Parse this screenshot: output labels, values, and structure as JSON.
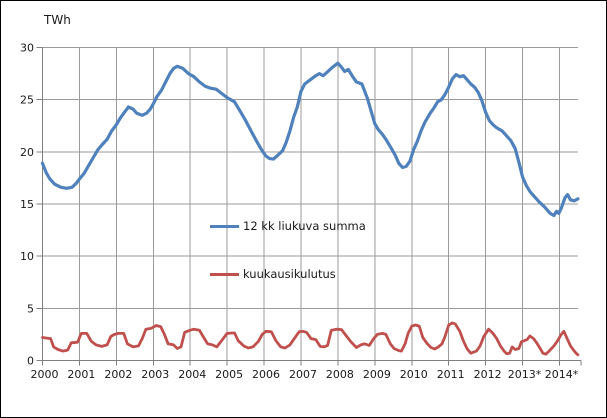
{
  "chart_data": {
    "type": "line",
    "title": "",
    "ylabel": "TWh",
    "grid": true,
    "legend_position": "inside-center-left",
    "grid_color": "#9b9b9b",
    "axis_color": "#7f7f7f",
    "x_axis": {
      "min": 2000,
      "max": 2014.583,
      "end_tick": true,
      "ticks": [
        {
          "year": 2000,
          "label": "2000"
        },
        {
          "year": 2001,
          "label": "2001"
        },
        {
          "year": 2002,
          "label": "2002"
        },
        {
          "year": 2003,
          "label": "2003"
        },
        {
          "year": 2004,
          "label": "2004"
        },
        {
          "year": 2005,
          "label": "2005"
        },
        {
          "year": 2006,
          "label": "2006"
        },
        {
          "year": 2007,
          "label": "2007"
        },
        {
          "year": 2008,
          "label": "2008"
        },
        {
          "year": 2009,
          "label": "2009"
        },
        {
          "year": 2010,
          "label": "2010"
        },
        {
          "year": 2011,
          "label": "2011"
        },
        {
          "year": 2012,
          "label": "2012"
        },
        {
          "year": 2013,
          "label": "2013*"
        },
        {
          "year": 2014,
          "label": "2014*"
        }
      ]
    },
    "y_axis": {
      "min": 0,
      "max": 30,
      "tick_interval": 5,
      "ticks": [
        {
          "value": 0,
          "label": "0"
        },
        {
          "value": 5,
          "label": "5"
        },
        {
          "value": 10,
          "label": "10"
        },
        {
          "value": 15,
          "label": "15"
        },
        {
          "value": 20,
          "label": "20"
        },
        {
          "value": 25,
          "label": "25"
        },
        {
          "value": 30,
          "label": "30"
        }
      ]
    },
    "series": [
      {
        "name": "12 kk liukuva summa",
        "color": "#4F81BD",
        "width": 3.2,
        "points": [
          [
            2000.0,
            18.9
          ],
          [
            2000.1,
            18.0
          ],
          [
            2000.2,
            17.4
          ],
          [
            2000.33,
            16.9
          ],
          [
            2000.5,
            16.6
          ],
          [
            2000.65,
            16.5
          ],
          [
            2000.8,
            16.6
          ],
          [
            2000.92,
            17.0
          ],
          [
            2001.0,
            17.4
          ],
          [
            2001.12,
            17.9
          ],
          [
            2001.25,
            18.7
          ],
          [
            2001.4,
            19.6
          ],
          [
            2001.5,
            20.2
          ],
          [
            2001.62,
            20.7
          ],
          [
            2001.75,
            21.2
          ],
          [
            2001.87,
            22.0
          ],
          [
            2002.0,
            22.6
          ],
          [
            2002.1,
            23.2
          ],
          [
            2002.22,
            23.8
          ],
          [
            2002.33,
            24.3
          ],
          [
            2002.45,
            24.1
          ],
          [
            2002.55,
            23.7
          ],
          [
            2002.7,
            23.5
          ],
          [
            2002.82,
            23.7
          ],
          [
            2002.92,
            24.1
          ],
          [
            2003.0,
            24.6
          ],
          [
            2003.1,
            25.3
          ],
          [
            2003.22,
            25.9
          ],
          [
            2003.35,
            26.8
          ],
          [
            2003.45,
            27.5
          ],
          [
            2003.55,
            28.0
          ],
          [
            2003.65,
            28.2
          ],
          [
            2003.8,
            28.0
          ],
          [
            2003.95,
            27.5
          ],
          [
            2004.1,
            27.2
          ],
          [
            2004.25,
            26.7
          ],
          [
            2004.4,
            26.3
          ],
          [
            2004.55,
            26.1
          ],
          [
            2004.7,
            26.0
          ],
          [
            2004.85,
            25.6
          ],
          [
            2005.0,
            25.2
          ],
          [
            2005.2,
            24.8
          ],
          [
            2005.35,
            23.9
          ],
          [
            2005.5,
            23.0
          ],
          [
            2005.65,
            22.0
          ],
          [
            2005.8,
            21.0
          ],
          [
            2005.95,
            20.1
          ],
          [
            2006.05,
            19.6
          ],
          [
            2006.15,
            19.35
          ],
          [
            2006.25,
            19.3
          ],
          [
            2006.35,
            19.6
          ],
          [
            2006.5,
            20.1
          ],
          [
            2006.6,
            20.9
          ],
          [
            2006.7,
            22.0
          ],
          [
            2006.8,
            23.3
          ],
          [
            2006.9,
            24.3
          ],
          [
            2007.0,
            25.8
          ],
          [
            2007.1,
            26.5
          ],
          [
            2007.25,
            26.9
          ],
          [
            2007.4,
            27.3
          ],
          [
            2007.5,
            27.5
          ],
          [
            2007.6,
            27.3
          ],
          [
            2007.7,
            27.6
          ],
          [
            2007.85,
            28.1
          ],
          [
            2008.0,
            28.5
          ],
          [
            2008.1,
            28.1
          ],
          [
            2008.18,
            27.7
          ],
          [
            2008.28,
            27.9
          ],
          [
            2008.4,
            27.2
          ],
          [
            2008.5,
            26.7
          ],
          [
            2008.65,
            26.5
          ],
          [
            2008.8,
            25.1
          ],
          [
            2008.9,
            23.9
          ],
          [
            2009.0,
            22.7
          ],
          [
            2009.1,
            22.1
          ],
          [
            2009.2,
            21.7
          ],
          [
            2009.3,
            21.2
          ],
          [
            2009.45,
            20.3
          ],
          [
            2009.55,
            19.7
          ],
          [
            2009.65,
            18.9
          ],
          [
            2009.75,
            18.5
          ],
          [
            2009.85,
            18.6
          ],
          [
            2009.95,
            19.1
          ],
          [
            2010.05,
            20.2
          ],
          [
            2010.15,
            21.0
          ],
          [
            2010.25,
            22.0
          ],
          [
            2010.35,
            22.8
          ],
          [
            2010.5,
            23.7
          ],
          [
            2010.6,
            24.2
          ],
          [
            2010.7,
            24.8
          ],
          [
            2010.8,
            25.0
          ],
          [
            2010.9,
            25.5
          ],
          [
            2011.0,
            26.2
          ],
          [
            2011.1,
            27.0
          ],
          [
            2011.2,
            27.4
          ],
          [
            2011.3,
            27.2
          ],
          [
            2011.4,
            27.3
          ],
          [
            2011.5,
            26.9
          ],
          [
            2011.6,
            26.5
          ],
          [
            2011.7,
            26.2
          ],
          [
            2011.8,
            25.7
          ],
          [
            2011.9,
            24.9
          ],
          [
            2012.0,
            23.8
          ],
          [
            2012.1,
            23.0
          ],
          [
            2012.2,
            22.6
          ],
          [
            2012.3,
            22.3
          ],
          [
            2012.45,
            22.0
          ],
          [
            2012.55,
            21.6
          ],
          [
            2012.68,
            21.1
          ],
          [
            2012.8,
            20.3
          ],
          [
            2012.9,
            19.0
          ],
          [
            2013.0,
            17.6
          ],
          [
            2013.1,
            16.8
          ],
          [
            2013.2,
            16.2
          ],
          [
            2013.3,
            15.8
          ],
          [
            2013.45,
            15.2
          ],
          [
            2013.6,
            14.7
          ],
          [
            2013.75,
            14.1
          ],
          [
            2013.85,
            13.9
          ],
          [
            2013.92,
            14.3
          ],
          [
            2013.98,
            14.1
          ],
          [
            2014.05,
            14.6
          ],
          [
            2014.15,
            15.6
          ],
          [
            2014.22,
            15.9
          ],
          [
            2014.3,
            15.4
          ],
          [
            2014.4,
            15.3
          ],
          [
            2014.5,
            15.5
          ]
        ]
      },
      {
        "name": "kuukausikulutus",
        "color": "#C0504D",
        "width": 2.8,
        "points": [
          [
            2000.0,
            2.2
          ],
          [
            2000.12,
            2.15
          ],
          [
            2000.22,
            2.1
          ],
          [
            2000.3,
            1.3
          ],
          [
            2000.42,
            1.05
          ],
          [
            2000.55,
            0.9
          ],
          [
            2000.68,
            1.0
          ],
          [
            2000.78,
            1.7
          ],
          [
            2000.95,
            1.75
          ],
          [
            2001.05,
            2.6
          ],
          [
            2001.2,
            2.6
          ],
          [
            2001.32,
            1.85
          ],
          [
            2001.45,
            1.5
          ],
          [
            2001.6,
            1.35
          ],
          [
            2001.75,
            1.5
          ],
          [
            2001.85,
            2.3
          ],
          [
            2001.95,
            2.5
          ],
          [
            2002.05,
            2.6
          ],
          [
            2002.2,
            2.6
          ],
          [
            2002.3,
            1.6
          ],
          [
            2002.45,
            1.3
          ],
          [
            2002.6,
            1.4
          ],
          [
            2002.7,
            2.1
          ],
          [
            2002.8,
            3.0
          ],
          [
            2002.95,
            3.1
          ],
          [
            2003.08,
            3.35
          ],
          [
            2003.2,
            3.25
          ],
          [
            2003.3,
            2.5
          ],
          [
            2003.4,
            1.6
          ],
          [
            2003.55,
            1.5
          ],
          [
            2003.65,
            1.15
          ],
          [
            2003.75,
            1.3
          ],
          [
            2003.85,
            2.7
          ],
          [
            2004.0,
            2.9
          ],
          [
            2004.1,
            3.0
          ],
          [
            2004.25,
            2.9
          ],
          [
            2004.35,
            2.3
          ],
          [
            2004.47,
            1.6
          ],
          [
            2004.6,
            1.5
          ],
          [
            2004.72,
            1.3
          ],
          [
            2004.85,
            1.9
          ],
          [
            2005.0,
            2.6
          ],
          [
            2005.2,
            2.65
          ],
          [
            2005.3,
            1.9
          ],
          [
            2005.45,
            1.4
          ],
          [
            2005.57,
            1.2
          ],
          [
            2005.7,
            1.3
          ],
          [
            2005.85,
            1.85
          ],
          [
            2005.95,
            2.5
          ],
          [
            2006.05,
            2.8
          ],
          [
            2006.2,
            2.75
          ],
          [
            2006.32,
            1.9
          ],
          [
            2006.45,
            1.3
          ],
          [
            2006.57,
            1.2
          ],
          [
            2006.7,
            1.5
          ],
          [
            2006.8,
            2.0
          ],
          [
            2006.95,
            2.75
          ],
          [
            2007.05,
            2.8
          ],
          [
            2007.15,
            2.7
          ],
          [
            2007.27,
            2.1
          ],
          [
            2007.4,
            2.0
          ],
          [
            2007.52,
            1.35
          ],
          [
            2007.62,
            1.3
          ],
          [
            2007.72,
            1.45
          ],
          [
            2007.82,
            2.9
          ],
          [
            2007.97,
            3.0
          ],
          [
            2008.1,
            2.95
          ],
          [
            2008.22,
            2.4
          ],
          [
            2008.35,
            1.8
          ],
          [
            2008.5,
            1.25
          ],
          [
            2008.62,
            1.5
          ],
          [
            2008.72,
            1.6
          ],
          [
            2008.85,
            1.45
          ],
          [
            2008.97,
            2.1
          ],
          [
            2009.07,
            2.5
          ],
          [
            2009.2,
            2.6
          ],
          [
            2009.3,
            2.5
          ],
          [
            2009.42,
            1.6
          ],
          [
            2009.52,
            1.15
          ],
          [
            2009.65,
            0.95
          ],
          [
            2009.72,
            0.9
          ],
          [
            2009.82,
            1.6
          ],
          [
            2009.9,
            2.6
          ],
          [
            2010.0,
            3.3
          ],
          [
            2010.1,
            3.4
          ],
          [
            2010.2,
            3.3
          ],
          [
            2010.3,
            2.2
          ],
          [
            2010.42,
            1.6
          ],
          [
            2010.52,
            1.25
          ],
          [
            2010.62,
            1.1
          ],
          [
            2010.72,
            1.3
          ],
          [
            2010.82,
            1.6
          ],
          [
            2010.9,
            2.3
          ],
          [
            2011.0,
            3.4
          ],
          [
            2011.1,
            3.6
          ],
          [
            2011.18,
            3.5
          ],
          [
            2011.3,
            2.8
          ],
          [
            2011.4,
            1.85
          ],
          [
            2011.5,
            1.1
          ],
          [
            2011.6,
            0.7
          ],
          [
            2011.75,
            0.9
          ],
          [
            2011.85,
            1.4
          ],
          [
            2011.95,
            2.3
          ],
          [
            2012.08,
            3.0
          ],
          [
            2012.2,
            2.6
          ],
          [
            2012.3,
            2.1
          ],
          [
            2012.4,
            1.4
          ],
          [
            2012.5,
            0.9
          ],
          [
            2012.57,
            0.65
          ],
          [
            2012.65,
            0.7
          ],
          [
            2012.72,
            1.3
          ],
          [
            2012.8,
            1.05
          ],
          [
            2012.9,
            1.15
          ],
          [
            2012.97,
            1.8
          ],
          [
            2013.05,
            1.9
          ],
          [
            2013.12,
            2.0
          ],
          [
            2013.2,
            2.35
          ],
          [
            2013.3,
            2.1
          ],
          [
            2013.38,
            1.7
          ],
          [
            2013.47,
            1.2
          ],
          [
            2013.55,
            0.7
          ],
          [
            2013.63,
            0.6
          ],
          [
            2013.72,
            0.9
          ],
          [
            2013.85,
            1.4
          ],
          [
            2013.95,
            1.9
          ],
          [
            2014.05,
            2.5
          ],
          [
            2014.12,
            2.8
          ],
          [
            2014.22,
            2.0
          ],
          [
            2014.3,
            1.4
          ],
          [
            2014.38,
            1.0
          ],
          [
            2014.45,
            0.7
          ],
          [
            2014.5,
            0.55
          ]
        ]
      }
    ]
  }
}
